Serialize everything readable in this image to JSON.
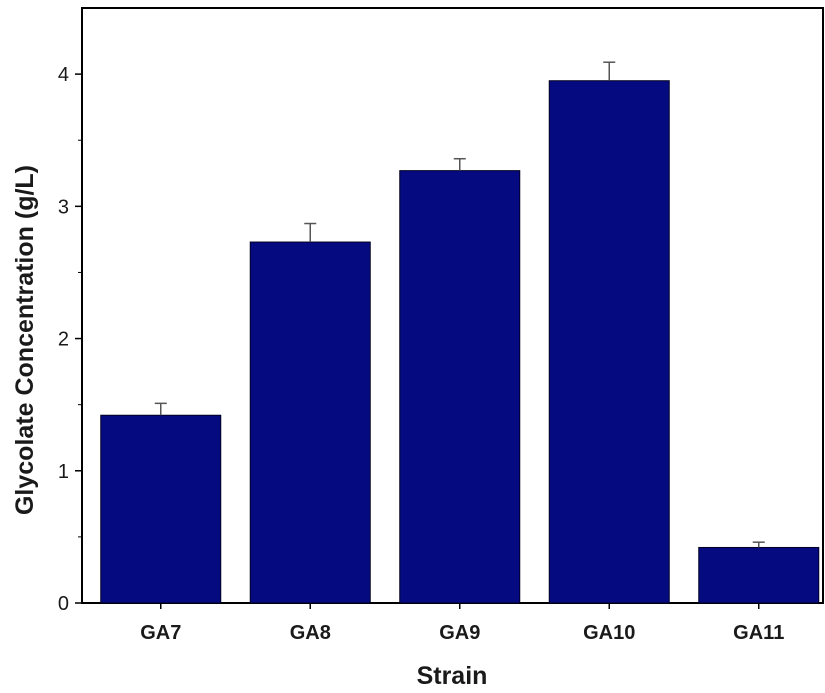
{
  "chart_data": {
    "type": "bar",
    "title": "",
    "xlabel": "Strain",
    "ylabel": "Glycolate Concentration (g/L)",
    "categories": [
      "GA7",
      "GA8",
      "GA9",
      "GA10",
      "GA11"
    ],
    "values": [
      1.42,
      2.73,
      3.27,
      3.95,
      0.42
    ],
    "errors": [
      0.09,
      0.14,
      0.09,
      0.14,
      0.04
    ],
    "ylim": [
      0,
      4.5
    ],
    "yticks": [
      0,
      1,
      2,
      3,
      4
    ],
    "grid": false,
    "legend": "none",
    "bar_color": "#050a80",
    "error_bar_color": "#555555"
  }
}
